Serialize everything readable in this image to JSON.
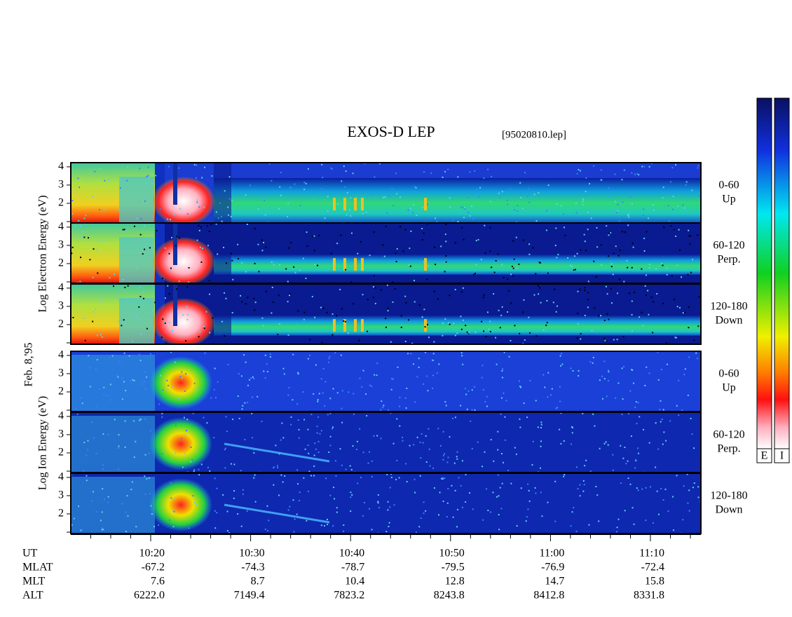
{
  "title": "EXOS-D LEP",
  "file": "[95020810.lep]",
  "date": "Feb. 8,'95",
  "species_labels": {
    "electron": "Log  Electron  Energy (eV)",
    "ion": "Log  Ion  Energy (eV)"
  },
  "panels": [
    {
      "species": "electron",
      "angle": "0-60",
      "direction": "Up"
    },
    {
      "species": "electron",
      "angle": "60-120",
      "direction": "Perp."
    },
    {
      "species": "electron",
      "angle": "120-180",
      "direction": "Down"
    },
    {
      "species": "ion",
      "angle": "0-60",
      "direction": "Up"
    },
    {
      "species": "ion",
      "angle": "60-120",
      "direction": "Perp."
    },
    {
      "species": "ion",
      "angle": "120-180",
      "direction": "Down"
    }
  ],
  "yticks": [
    2,
    3,
    4
  ],
  "axis": {
    "row_labels": [
      "UT",
      "MLAT",
      "MLT",
      "ALT"
    ],
    "columns": [
      [
        "10:20",
        "-67.2",
        "7.6",
        "6222.0"
      ],
      [
        "10:30",
        "-74.3",
        "8.7",
        "7149.4"
      ],
      [
        "10:40",
        "-78.7",
        "10.4",
        "7823.2"
      ],
      [
        "10:50",
        "-79.5",
        "12.8",
        "8243.8"
      ],
      [
        "11:00",
        "-76.9",
        "14.7",
        "8412.8"
      ],
      [
        "11:10",
        "-72.4",
        "15.8",
        "8331.8"
      ]
    ]
  },
  "colorbars": [
    "E",
    "I"
  ]
}
